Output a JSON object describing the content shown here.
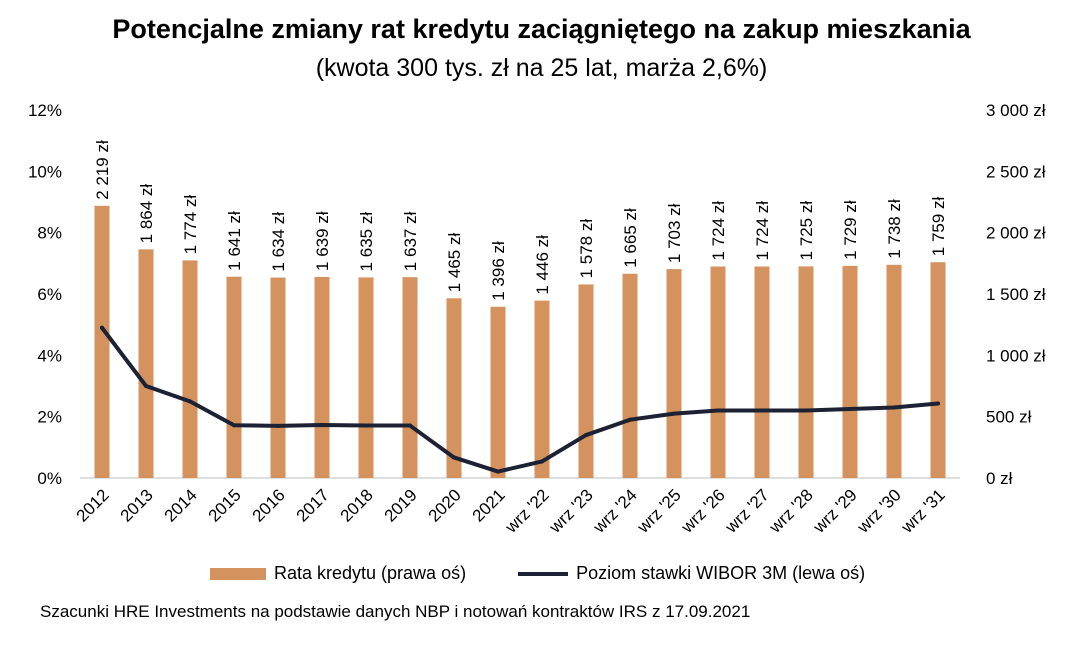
{
  "title": "Potencjalne zmiany rat kredytu zaciągniętego na zakup mieszkania",
  "subtitle": "(kwota 300 tys. zł na 25 lat, marża 2,6%)",
  "source": "Szacunki HRE Investments na podstawie danych NBP i notowań kontraktów IRS z 17.09.2021",
  "colors": {
    "bar": "#D4925F",
    "line": "#1C2133",
    "axis": "#BFBFBF"
  },
  "chart_data": {
    "type": "bar",
    "categories": [
      "2012",
      "2013",
      "2014",
      "2015",
      "2016",
      "2017",
      "2018",
      "2019",
      "2020",
      "2021",
      "wrz '22",
      "wrz '23",
      "wrz '24",
      "wrz '25",
      "wrz '26",
      "wrz '27",
      "wrz '28",
      "wrz '29",
      "wrz '30",
      "wrz '31"
    ],
    "series": [
      {
        "name": "Rata kredytu (prawa oś)",
        "kind": "bar",
        "axis": "right",
        "values": [
          2219,
          1864,
          1774,
          1641,
          1634,
          1639,
          1635,
          1637,
          1465,
          1396,
          1446,
          1578,
          1665,
          1703,
          1724,
          1724,
          1725,
          1729,
          1738,
          1759
        ],
        "labels": [
          "2 219 zł",
          "1 864 zł",
          "1 774 zł",
          "1 641 zł",
          "1 634 zł",
          "1 639 zł",
          "1 635 zł",
          "1 637 zł",
          "1 465 zł",
          "1 396 zł",
          "1 446 zł",
          "1 578 zł",
          "1 665 zł",
          "1 703 zł",
          "1 724 zł",
          "1 724 zł",
          "1 725 zł",
          "1 729 zł",
          "1 738 zł",
          "1 759 zł"
        ]
      },
      {
        "name": "Poziom stawki WIBOR 3M (lewa oś)",
        "kind": "line",
        "axis": "left",
        "values": [
          4.9,
          3.0,
          2.5,
          1.72,
          1.7,
          1.73,
          1.71,
          1.71,
          0.67,
          0.21,
          0.54,
          1.4,
          1.9,
          2.1,
          2.2,
          2.2,
          2.2,
          2.25,
          2.3,
          2.43
        ]
      }
    ],
    "left_axis": {
      "ylim": [
        0,
        12
      ],
      "ticks": [
        0,
        2,
        4,
        6,
        8,
        10,
        12
      ],
      "tick_labels": [
        "0%",
        "2%",
        "4%",
        "6%",
        "8%",
        "10%",
        "12%"
      ]
    },
    "right_axis": {
      "ylim": [
        0,
        3000
      ],
      "ticks": [
        0,
        500,
        1000,
        1500,
        2000,
        2500,
        3000
      ],
      "tick_labels": [
        "0 zł",
        "500 zł",
        "1 000 zł",
        "1 500 zł",
        "2 000 zł",
        "2 500 zł",
        "3 000 zł"
      ]
    },
    "grid": false,
    "legend_position": "bottom"
  }
}
